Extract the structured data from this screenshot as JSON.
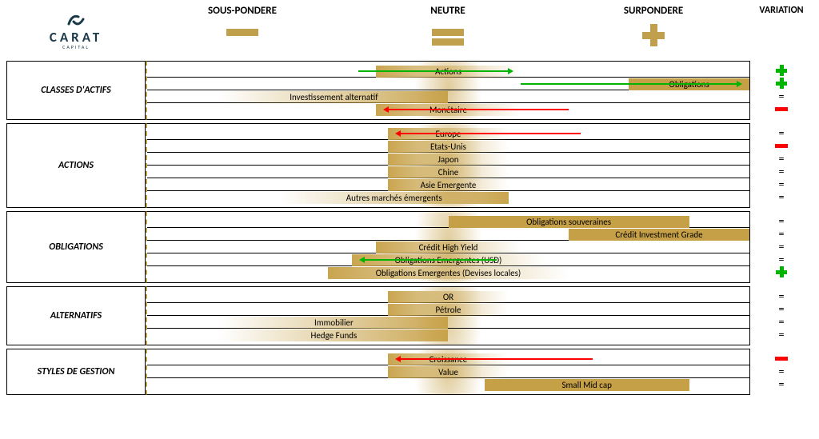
{
  "logo": {
    "main": "CARAT",
    "sub": "CAPITAL"
  },
  "axis": {
    "neutral_pct": 50,
    "glow_width_pct": 16
  },
  "headers": {
    "sous_pondere": {
      "label": "SOUS-PONDERE",
      "pos_pct": 16
    },
    "neutre": {
      "label": "NEUTRE",
      "pos_pct": 50
    },
    "surpondere": {
      "label": "SURPONDERE",
      "pos_pct": 84
    },
    "variation": {
      "label": "VARIATION"
    }
  },
  "colors": {
    "gold": "#c6a046",
    "gold_mark": "#c0a04c",
    "green": "#00b400",
    "red": "#ff0000",
    "navy": "#1a3a4a"
  },
  "sections": [
    {
      "title": "CLASSES D'ACTIFS",
      "rows": [
        {
          "label": "Actions",
          "bar": {
            "start": 38,
            "end": 62,
            "align": "right-fade"
          },
          "arrow": {
            "color": "green",
            "dir": "right",
            "from": 35,
            "to": 60
          },
          "variation": "plus"
        },
        {
          "label": "Obligations",
          "bar": {
            "start": 80,
            "end": 100,
            "align": "solid"
          },
          "arrow": {
            "color": "green",
            "dir": "right",
            "from": 62,
            "to": 98
          },
          "variation": "plus"
        },
        {
          "label": "Investissement alternatif",
          "bar": {
            "start": 12,
            "end": 50,
            "align": "left-fade"
          },
          "arrow": null,
          "variation": "eq"
        },
        {
          "label": "Monétaire",
          "bar": {
            "start": 38,
            "end": 62,
            "align": "right-fade"
          },
          "arrow": {
            "color": "red",
            "dir": "left",
            "from": 40,
            "to": 70
          },
          "variation": "minus"
        }
      ]
    },
    {
      "title": "ACTIONS",
      "rows": [
        {
          "label": "Europe",
          "bar": {
            "start": 40,
            "end": 60,
            "align": "right-fade"
          },
          "arrow": {
            "color": "red",
            "dir": "left",
            "from": 42,
            "to": 72
          },
          "variation": "eq"
        },
        {
          "label": "Etats-Unis",
          "bar": {
            "start": 40,
            "end": 60,
            "align": "right-fade"
          },
          "arrow": null,
          "variation": "minus"
        },
        {
          "label": "Japon",
          "bar": {
            "start": 40,
            "end": 60,
            "align": "right-fade"
          },
          "arrow": null,
          "variation": "eq"
        },
        {
          "label": "Chine",
          "bar": {
            "start": 40,
            "end": 60,
            "align": "right-fade"
          },
          "arrow": null,
          "variation": "eq"
        },
        {
          "label": "Asie Emergente",
          "bar": {
            "start": 40,
            "end": 60,
            "align": "right-fade"
          },
          "arrow": null,
          "variation": "eq"
        },
        {
          "label": "Autres marchés émergents",
          "bar": {
            "start": 22,
            "end": 60,
            "align": "left-fade"
          },
          "arrow": null,
          "variation": "eq"
        }
      ]
    },
    {
      "title": "OBLIGATIONS",
      "rows": [
        {
          "label": "Obligations souveraines",
          "bar": {
            "start": 50,
            "end": 90,
            "align": "solid"
          },
          "arrow": null,
          "variation": "eq"
        },
        {
          "label": "Crédit Investment Grade",
          "bar": {
            "start": 70,
            "end": 100,
            "align": "solid"
          },
          "arrow": null,
          "variation": "eq"
        },
        {
          "label": "Crédit High Yield",
          "bar": {
            "start": 38,
            "end": 62,
            "align": "right-fade"
          },
          "arrow": null,
          "variation": "eq"
        },
        {
          "label": "Obligations Emergentes (USD)",
          "bar": {
            "start": 34,
            "end": 66,
            "align": "right-fade"
          },
          "arrow": {
            "color": "green",
            "dir": "left",
            "from": 36,
            "to": 58
          },
          "variation": "eq"
        },
        {
          "label": "Obligations Emergentes (Devises locales)",
          "bar": {
            "start": 30,
            "end": 70,
            "align": "right-fade"
          },
          "arrow": null,
          "variation": "plus"
        }
      ]
    },
    {
      "title": "ALTERNATIFS",
      "rows": [
        {
          "label": "OR",
          "bar": {
            "start": 40,
            "end": 60,
            "align": "right-fade"
          },
          "arrow": null,
          "variation": "eq"
        },
        {
          "label": "Pétrole",
          "bar": {
            "start": 40,
            "end": 60,
            "align": "right-fade"
          },
          "arrow": null,
          "variation": "eq"
        },
        {
          "label": "Immobilier",
          "bar": {
            "start": 12,
            "end": 50,
            "align": "left-fade"
          },
          "arrow": null,
          "variation": "eq"
        },
        {
          "label": "Hedge Funds",
          "bar": {
            "start": 12,
            "end": 50,
            "align": "left-fade"
          },
          "arrow": null,
          "variation": "eq"
        }
      ]
    },
    {
      "title": "STYLES DE GESTION",
      "rows": [
        {
          "label": "Croissance",
          "bar": {
            "start": 40,
            "end": 60,
            "align": "right-fade"
          },
          "arrow": {
            "color": "red",
            "dir": "left",
            "from": 42,
            "to": 74
          },
          "variation": "minus"
        },
        {
          "label": "Value",
          "bar": {
            "start": 40,
            "end": 60,
            "align": "right-fade"
          },
          "arrow": null,
          "variation": "eq"
        },
        {
          "label": "Small Mid cap",
          "bar": {
            "start": 56,
            "end": 90,
            "align": "solid"
          },
          "arrow": null,
          "variation": "eq"
        }
      ]
    }
  ]
}
